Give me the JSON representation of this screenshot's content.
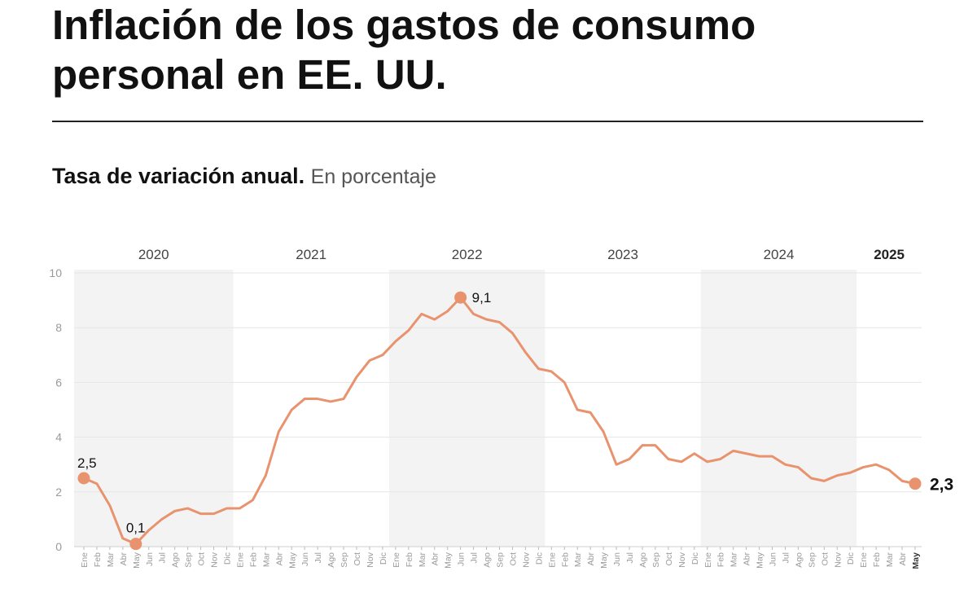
{
  "header": {
    "title": "Inflación de los gastos de consumo personal en EE. UU.",
    "subtitle_bold": "Tasa de variación anual.",
    "subtitle_light": "En porcentaje"
  },
  "colors": {
    "line": "#e8936e",
    "shade": "#f3f3f3",
    "grid": "#e6e6e6",
    "tick": "#9a9a9a",
    "year": "#444444"
  },
  "chart_data": {
    "type": "line",
    "title": "Inflación de los gastos de consumo personal en EE. UU.",
    "subtitle": "Tasa de variación anual. En porcentaje",
    "xlabel": "",
    "ylabel": "",
    "ylim": [
      0,
      10
    ],
    "yticks": [
      0,
      2,
      4,
      6,
      8,
      10
    ],
    "grid": true,
    "legend": "none",
    "years": [
      {
        "label": "2020",
        "start_index": 0,
        "end_index": 11,
        "shaded": true,
        "bold": false
      },
      {
        "label": "2021",
        "start_index": 12,
        "end_index": 23,
        "shaded": false,
        "bold": false
      },
      {
        "label": "2022",
        "start_index": 24,
        "end_index": 35,
        "shaded": true,
        "bold": false
      },
      {
        "label": "2023",
        "start_index": 36,
        "end_index": 47,
        "shaded": false,
        "bold": false
      },
      {
        "label": "2024",
        "start_index": 48,
        "end_index": 59,
        "shaded": true,
        "bold": false
      },
      {
        "label": "2025",
        "start_index": 60,
        "end_index": 64,
        "shaded": false,
        "bold": true
      }
    ],
    "x": [
      "Ene",
      "Feb",
      "Mar",
      "Abr",
      "May",
      "Jun",
      "Jul",
      "Ago",
      "Sep",
      "Oct",
      "Nov",
      "Dic",
      "Ene",
      "Feb",
      "Mar",
      "Abr",
      "May",
      "Jun",
      "Jul",
      "Ago",
      "Sep",
      "Oct",
      "Nov",
      "Dic",
      "Ene",
      "Feb",
      "Mar",
      "Abr",
      "May",
      "Jun",
      "Jul",
      "Ago",
      "Sep",
      "Oct",
      "Nov",
      "Dic",
      "Ene",
      "Feb",
      "Mar",
      "Abr",
      "May",
      "Jun",
      "Jul",
      "Ago",
      "Sep",
      "Oct",
      "Nov",
      "Dic",
      "Ene",
      "Feb",
      "Mar",
      "Abr",
      "May",
      "Jun",
      "Jul",
      "Ago",
      "Sep",
      "Oct",
      "Nov",
      "Dic",
      "Ene",
      "Feb",
      "Mar",
      "Abr",
      "May"
    ],
    "series": [
      {
        "values": [
          2.5,
          2.3,
          1.5,
          0.3,
          0.1,
          0.6,
          1.0,
          1.3,
          1.4,
          1.2,
          1.2,
          1.4,
          1.4,
          1.7,
          2.6,
          4.2,
          5.0,
          5.4,
          5.4,
          5.3,
          5.4,
          6.2,
          6.8,
          7.0,
          7.5,
          7.9,
          8.5,
          8.3,
          8.6,
          9.1,
          8.5,
          8.3,
          8.2,
          7.8,
          7.1,
          6.5,
          6.4,
          6.0,
          5.0,
          4.9,
          4.2,
          3.0,
          3.2,
          3.7,
          3.7,
          3.2,
          3.1,
          3.4,
          3.1,
          3.2,
          3.5,
          3.4,
          3.3,
          3.3,
          3.0,
          2.9,
          2.5,
          2.4,
          2.6,
          2.7,
          2.9,
          3.0,
          2.8,
          2.4,
          2.3
        ]
      }
    ],
    "annotations": [
      {
        "index": 0,
        "value": 2.5,
        "label": "2,5",
        "bold": false
      },
      {
        "index": 4,
        "value": 0.1,
        "label": "0,1",
        "bold": false
      },
      {
        "index": 29,
        "value": 9.1,
        "label": "9,1",
        "bold": false
      },
      {
        "index": 64,
        "value": 2.3,
        "label": "2,3",
        "bold": true
      }
    ]
  }
}
